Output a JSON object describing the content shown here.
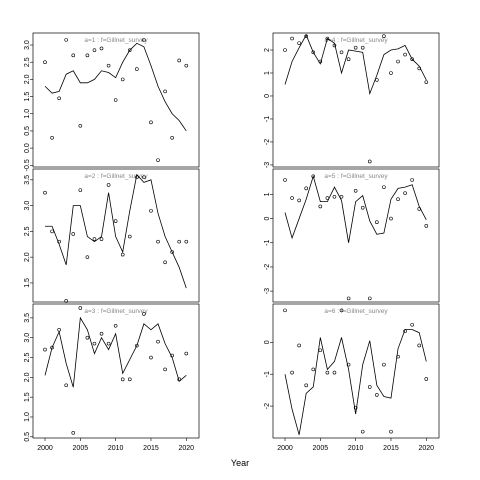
{
  "xlabel": "Year",
  "chart_data": [
    {
      "type": "scatter_line",
      "title": "a=1 : f=Gillnet_survey",
      "x": [
        2000,
        2001,
        2002,
        2003,
        2004,
        2005,
        2006,
        2007,
        2008,
        2009,
        2010,
        2011,
        2012,
        2013,
        2014,
        2015,
        2016,
        2017,
        2018,
        2019,
        2020
      ],
      "series": [
        {
          "style": "points",
          "color": "#000000",
          "values": [
            2.5,
            0.3,
            1.45,
            3.15,
            2.7,
            0.65,
            2.7,
            2.85,
            2.9,
            2.4,
            1.4,
            2.0,
            2.85,
            2.3,
            3.15,
            0.75,
            -0.35,
            1.65,
            0.3,
            2.55,
            2.4
          ]
        },
        {
          "style": "line",
          "color": "#000000",
          "values": [
            1.8,
            1.6,
            1.65,
            2.15,
            2.25,
            1.9,
            1.9,
            2.0,
            2.25,
            2.2,
            2.05,
            2.5,
            2.85,
            3.05,
            2.95,
            2.4,
            1.8,
            1.35,
            1.0,
            0.8,
            0.5
          ]
        }
      ],
      "xlim": [
        1998.3,
        2021.8
      ],
      "ylim": [
        -0.55,
        3.35
      ],
      "yticks": [
        -0.5,
        {
          "value": 0,
          "label": "0.0"
        },
        0.5,
        {
          "value": 1,
          "label": "1.0"
        },
        1.5,
        {
          "value": 2,
          "label": "2.0"
        },
        2.5,
        {
          "value": 3,
          "label": "3.0"
        }
      ]
    },
    {
      "type": "scatter_line",
      "title": "a=2 : f=Gillnet_survey",
      "x": [
        2000,
        2001,
        2002,
        2003,
        2004,
        2005,
        2006,
        2007,
        2008,
        2009,
        2010,
        2011,
        2012,
        2013,
        2014,
        2015,
        2016,
        2017,
        2018,
        2019,
        2020
      ],
      "series": [
        {
          "style": "points",
          "color": "#000000",
          "values": [
            3.25,
            2.5,
            2.3,
            1.15,
            2.45,
            3.3,
            2.0,
            2.35,
            2.35,
            3.4,
            2.7,
            2.05,
            2.4,
            3.55,
            3.55,
            2.9,
            2.3,
            1.9,
            2.1,
            2.3,
            2.3
          ]
        },
        {
          "style": "line",
          "color": "#000000",
          "values": [
            2.6,
            2.6,
            2.25,
            1.85,
            3.0,
            3.0,
            2.4,
            2.3,
            2.4,
            3.25,
            2.4,
            2.1,
            2.9,
            3.6,
            3.45,
            3.5,
            2.85,
            2.4,
            2.1,
            1.8,
            1.4
          ]
        }
      ],
      "xlim": [
        1998.3,
        2021.8
      ],
      "ylim": [
        1.13,
        3.71
      ],
      "yticks": [
        1.5,
        {
          "value": 2,
          "label": "2.0"
        },
        2.5,
        {
          "value": 3,
          "label": "3.0"
        },
        3.5
      ]
    },
    {
      "type": "scatter_line",
      "title": "a=3 : f=Gillnet_survey",
      "x": [
        2000,
        2001,
        2002,
        2003,
        2004,
        2005,
        2006,
        2007,
        2008,
        2009,
        2010,
        2011,
        2012,
        2013,
        2014,
        2015,
        2016,
        2017,
        2018,
        2019,
        2020
      ],
      "series": [
        {
          "style": "points",
          "color": "#000000",
          "values": [
            2.7,
            2.75,
            3.2,
            1.8,
            0.6,
            3.75,
            3.0,
            2.85,
            3.1,
            2.85,
            3.3,
            1.95,
            1.95,
            2.8,
            3.6,
            2.5,
            2.9,
            2.2,
            2.55,
            1.95,
            2.6
          ]
        },
        {
          "style": "line",
          "color": "#000000",
          "values": [
            2.05,
            2.75,
            3.15,
            2.35,
            1.75,
            3.5,
            3.2,
            2.6,
            3.0,
            2.7,
            3.1,
            2.1,
            2.45,
            2.8,
            3.35,
            3.2,
            3.35,
            2.85,
            2.5,
            1.9,
            2.05
          ]
        }
      ],
      "xlim": [
        1998.3,
        2021.8
      ],
      "ylim": [
        0.47,
        3.85
      ],
      "xticks": [
        2000,
        2005,
        2010,
        2015,
        2020
      ],
      "yticks": [
        0.5,
        {
          "value": 1,
          "label": "1.0"
        },
        1.5,
        {
          "value": 2,
          "label": "2.0"
        },
        2.5,
        {
          "value": 3,
          "label": "3.0"
        },
        3.5
      ]
    },
    {
      "type": "scatter_line",
      "title": "a=4 : f=Gillnet_survey",
      "x": [
        2000,
        2001,
        2002,
        2003,
        2004,
        2005,
        2006,
        2007,
        2008,
        2009,
        2010,
        2011,
        2012,
        2013,
        2014,
        2015,
        2016,
        2017,
        2018,
        2019,
        2020
      ],
      "series": [
        {
          "style": "points",
          "color": "#000000",
          "values": [
            2.0,
            2.5,
            2.3,
            2.6,
            1.9,
            1.5,
            2.5,
            2.2,
            1.9,
            1.6,
            2.1,
            2.1,
            -2.85,
            0.7,
            2.6,
            1.0,
            1.5,
            1.8,
            1.6,
            1.2,
            0.6
          ]
        },
        {
          "style": "line",
          "color": "#000000",
          "values": [
            0.5,
            1.5,
            2.1,
            2.65,
            1.9,
            1.4,
            2.5,
            2.3,
            1.0,
            2.0,
            1.95,
            1.9,
            0.1,
            0.9,
            1.8,
            2.0,
            2.05,
            2.2,
            1.6,
            1.3,
            0.7
          ]
        }
      ],
      "xlim": [
        1998.3,
        2021.8
      ],
      "ylim": [
        -3.09,
        2.74
      ],
      "yticks": [
        -3,
        -2,
        -1,
        0,
        1,
        2
      ]
    },
    {
      "type": "scatter_line",
      "title": "a=5 : f=Gillnet_survey",
      "x": [
        2000,
        2001,
        2002,
        2003,
        2004,
        2005,
        2006,
        2007,
        2008,
        2009,
        2010,
        2011,
        2012,
        2013,
        2014,
        2015,
        2016,
        2017,
        2018,
        2019,
        2020
      ],
      "series": [
        {
          "style": "points",
          "color": "#000000",
          "values": [
            1.6,
            0.85,
            0.75,
            1.25,
            1.75,
            0.5,
            0.85,
            0.9,
            0.9,
            -3.3,
            1.15,
            0.45,
            -3.3,
            -0.15,
            1.3,
            0.0,
            0.8,
            1.05,
            1.6,
            0.4,
            -0.3
          ]
        },
        {
          "style": "line",
          "color": "#000000",
          "values": [
            0.25,
            -0.8,
            0.0,
            0.8,
            1.75,
            0.7,
            0.7,
            1.3,
            0.75,
            -1.0,
            0.7,
            0.95,
            -0.1,
            -0.65,
            -0.6,
            0.8,
            1.25,
            1.3,
            1.4,
            0.5,
            -0.05
          ]
        }
      ],
      "xlim": [
        1998.3,
        2021.8
      ],
      "ylim": [
        -3.45,
        2.05
      ],
      "yticks": [
        -3,
        -2,
        -1,
        0,
        1
      ]
    },
    {
      "type": "scatter_line",
      "title": "a=6 : f=Gillnet_survey",
      "x": [
        2000,
        2001,
        2002,
        2003,
        2004,
        2005,
        2006,
        2007,
        2008,
        2009,
        2010,
        2011,
        2012,
        2013,
        2014,
        2015,
        2016,
        2017,
        2018,
        2019,
        2020
      ],
      "series": [
        {
          "style": "points",
          "color": "#000000",
          "values": [
            1.0,
            -0.95,
            -0.1,
            -1.35,
            -0.85,
            -0.25,
            -0.95,
            -0.95,
            1.0,
            -0.7,
            -2.05,
            -2.8,
            -1.4,
            -1.65,
            -0.7,
            -2.8,
            -0.45,
            0.35,
            0.55,
            -0.1,
            -1.15
          ]
        },
        {
          "style": "line",
          "color": "#000000",
          "values": [
            -1.0,
            -2.1,
            -2.9,
            -1.6,
            -1.4,
            0.15,
            -0.85,
            -0.6,
            0.15,
            -0.85,
            -2.25,
            -0.7,
            0.05,
            -1.35,
            -1.7,
            -1.75,
            -0.2,
            0.4,
            0.4,
            0.3,
            -0.6
          ]
        }
      ],
      "xlim": [
        1998.3,
        2021.8
      ],
      "ylim": [
        -3.0,
        1.2
      ],
      "xticks": [
        2000,
        2005,
        2010,
        2015,
        2020
      ],
      "yticks": [
        -2,
        -1,
        0
      ]
    }
  ]
}
